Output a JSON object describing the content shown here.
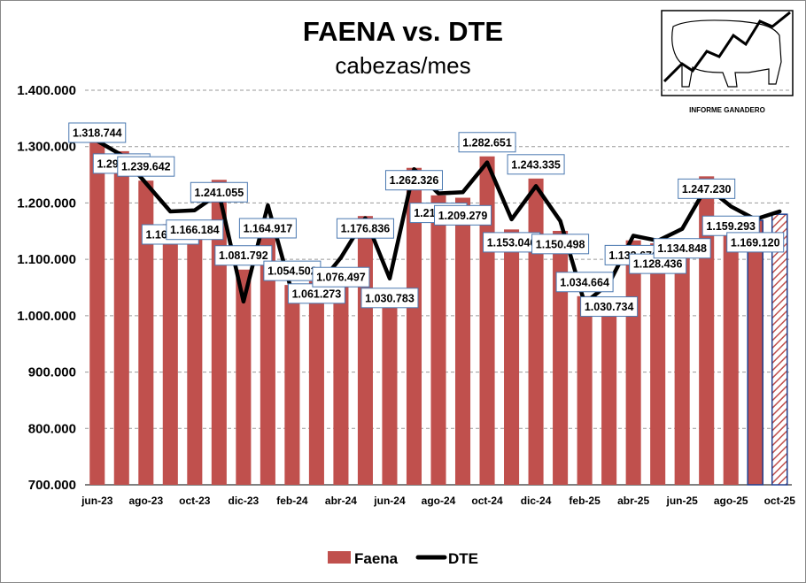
{
  "chart_data": {
    "type": "bar",
    "title": "FAENA vs. DTE",
    "subtitle": "cabezas/mes",
    "ylim": [
      700000,
      1400000
    ],
    "yticks": [
      700000,
      800000,
      900000,
      1000000,
      1100000,
      1200000,
      1300000,
      1400000
    ],
    "ytick_labels": [
      "700.000",
      "800.000",
      "900.000",
      "1.000.000",
      "1.100.000",
      "1.200.000",
      "1.300.000",
      "1.400.000"
    ],
    "grid": "horizontal dashed",
    "legend_position": "bottom",
    "categories": [
      "jun-23",
      "jul-23",
      "ago-23",
      "sep-23",
      "oct-23",
      "nov-23",
      "dic-23",
      "ene-24",
      "feb-24",
      "mar-24",
      "abr-24",
      "may-24",
      "jun-24",
      "jul-24",
      "ago-24",
      "sep-24",
      "oct-24",
      "nov-24",
      "dic-24",
      "ene-25",
      "feb-25",
      "mar-25",
      "abr-25",
      "may-25",
      "jun-25",
      "jul-25",
      "ago-25",
      "sep-25",
      "oct-25"
    ],
    "xtick_labels": [
      "jun-23",
      "ago-23",
      "oct-23",
      "dic-23",
      "feb-24",
      "abr-24",
      "jun-24",
      "ago-24",
      "oct-24",
      "dic-24",
      "feb-25",
      "abr-25",
      "jun-25",
      "ago-25",
      "oct-25"
    ],
    "series": [
      {
        "name": "Faena",
        "kind": "bar",
        "color": "#C0504D",
        "values": [
          1318744,
          1291853,
          1239642,
          1162459,
          1166184,
          1241055,
          1081792,
          1164917,
          1054502,
          1061273,
          1076497,
          1176836,
          1030783,
          1262326,
          1213512,
          1209279,
          1282651,
          1153046,
          1243335,
          1150498,
          1034664,
          1030734,
          1133670,
          1128436,
          1134848,
          1247230,
          1159293,
          1169120,
          1180000
        ],
        "labels": [
          "1.318.744",
          "1.291.853",
          "1.239.642",
          "1.162.459",
          "1.166.184",
          "1.241.055",
          "1.081.792",
          "1.164.917",
          "1.054.502",
          "1.061.273",
          "1.076.497",
          "1.176.836",
          "1.030.783",
          "1.262.326",
          "1.213.512",
          "1.209.279",
          "1.282.651",
          "1.153.046",
          "1.243.335",
          "1.150.498",
          "1.034.664",
          "1.030.734",
          "1.133.670",
          "1.128.436",
          "1.134.848",
          "1.247.230",
          "1.159.293",
          "1.169.120",
          ""
        ]
      },
      {
        "name": "DTE",
        "kind": "line",
        "color": "#000000",
        "values": [
          1310000,
          1285000,
          1235000,
          1185000,
          1187000,
          1217000,
          1025000,
          1196000,
          1040000,
          1050000,
          1103000,
          1173000,
          1066000,
          1260000,
          1217000,
          1219000,
          1272000,
          1171000,
          1230000,
          1168000,
          1022000,
          1057000,
          1142000,
          1133000,
          1154000,
          1229000,
          1194000,
          1171000,
          1185000
        ]
      }
    ]
  },
  "logo": {
    "caption": "INFORME GANADERO"
  }
}
